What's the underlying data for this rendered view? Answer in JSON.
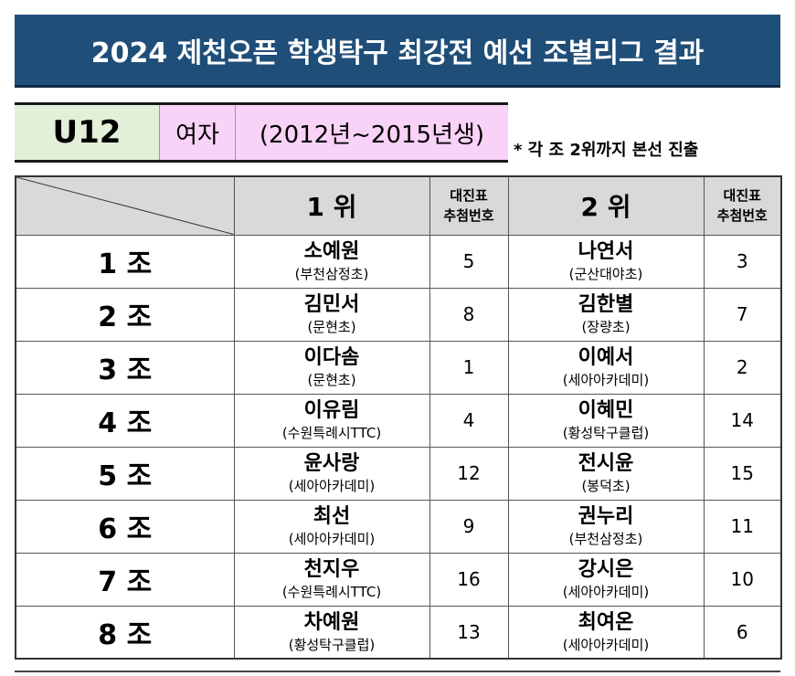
{
  "title": "2024 제천오픈 학생탁구 최강전 예선 조별리그 결과",
  "category": {
    "age": "U12",
    "gender": "여자",
    "years": "(2012년~2015년생)"
  },
  "note": "* 각 조 2위까지 본선 진출",
  "table": {
    "header": {
      "first": "1 위",
      "second": "2 위",
      "draw_line1": "대진표",
      "draw_line2": "추첨번호"
    },
    "rows": [
      {
        "group": "1 조",
        "first": {
          "name": "소예원",
          "club": "(부천삼정초)",
          "draw": "5"
        },
        "second": {
          "name": "나연서",
          "club": "(군산대야초)",
          "draw": "3"
        }
      },
      {
        "group": "2 조",
        "first": {
          "name": "김민서",
          "club": "(문현초)",
          "draw": "8"
        },
        "second": {
          "name": "김한별",
          "club": "(장량초)",
          "draw": "7"
        }
      },
      {
        "group": "3 조",
        "first": {
          "name": "이다솜",
          "club": "(문현초)",
          "draw": "1"
        },
        "second": {
          "name": "이예서",
          "club": "(세아아카데미)",
          "draw": "2"
        }
      },
      {
        "group": "4 조",
        "first": {
          "name": "이유림",
          "club": "(수원특례시TTC)",
          "draw": "4"
        },
        "second": {
          "name": "이혜민",
          "club": "(황성탁구클럽)",
          "draw": "14"
        }
      },
      {
        "group": "5 조",
        "first": {
          "name": "윤사랑",
          "club": "(세아아카데미)",
          "draw": "12"
        },
        "second": {
          "name": "전시윤",
          "club": "(봉덕초)",
          "draw": "15"
        }
      },
      {
        "group": "6 조",
        "first": {
          "name": "최선",
          "club": "(세아아카데미)",
          "draw": "9"
        },
        "second": {
          "name": "권누리",
          "club": "(부천삼정초)",
          "draw": "11"
        }
      },
      {
        "group": "7 조",
        "first": {
          "name": "천지우",
          "club": "(수원특례시TTC)",
          "draw": "16"
        },
        "second": {
          "name": "강시은",
          "club": "(세아아카데미)",
          "draw": "10"
        }
      },
      {
        "group": "8 조",
        "first": {
          "name": "차예원",
          "club": "(황성탁구클럽)",
          "draw": "13"
        },
        "second": {
          "name": "최여온",
          "club": "(세아아카데미)",
          "draw": "6"
        }
      }
    ]
  }
}
